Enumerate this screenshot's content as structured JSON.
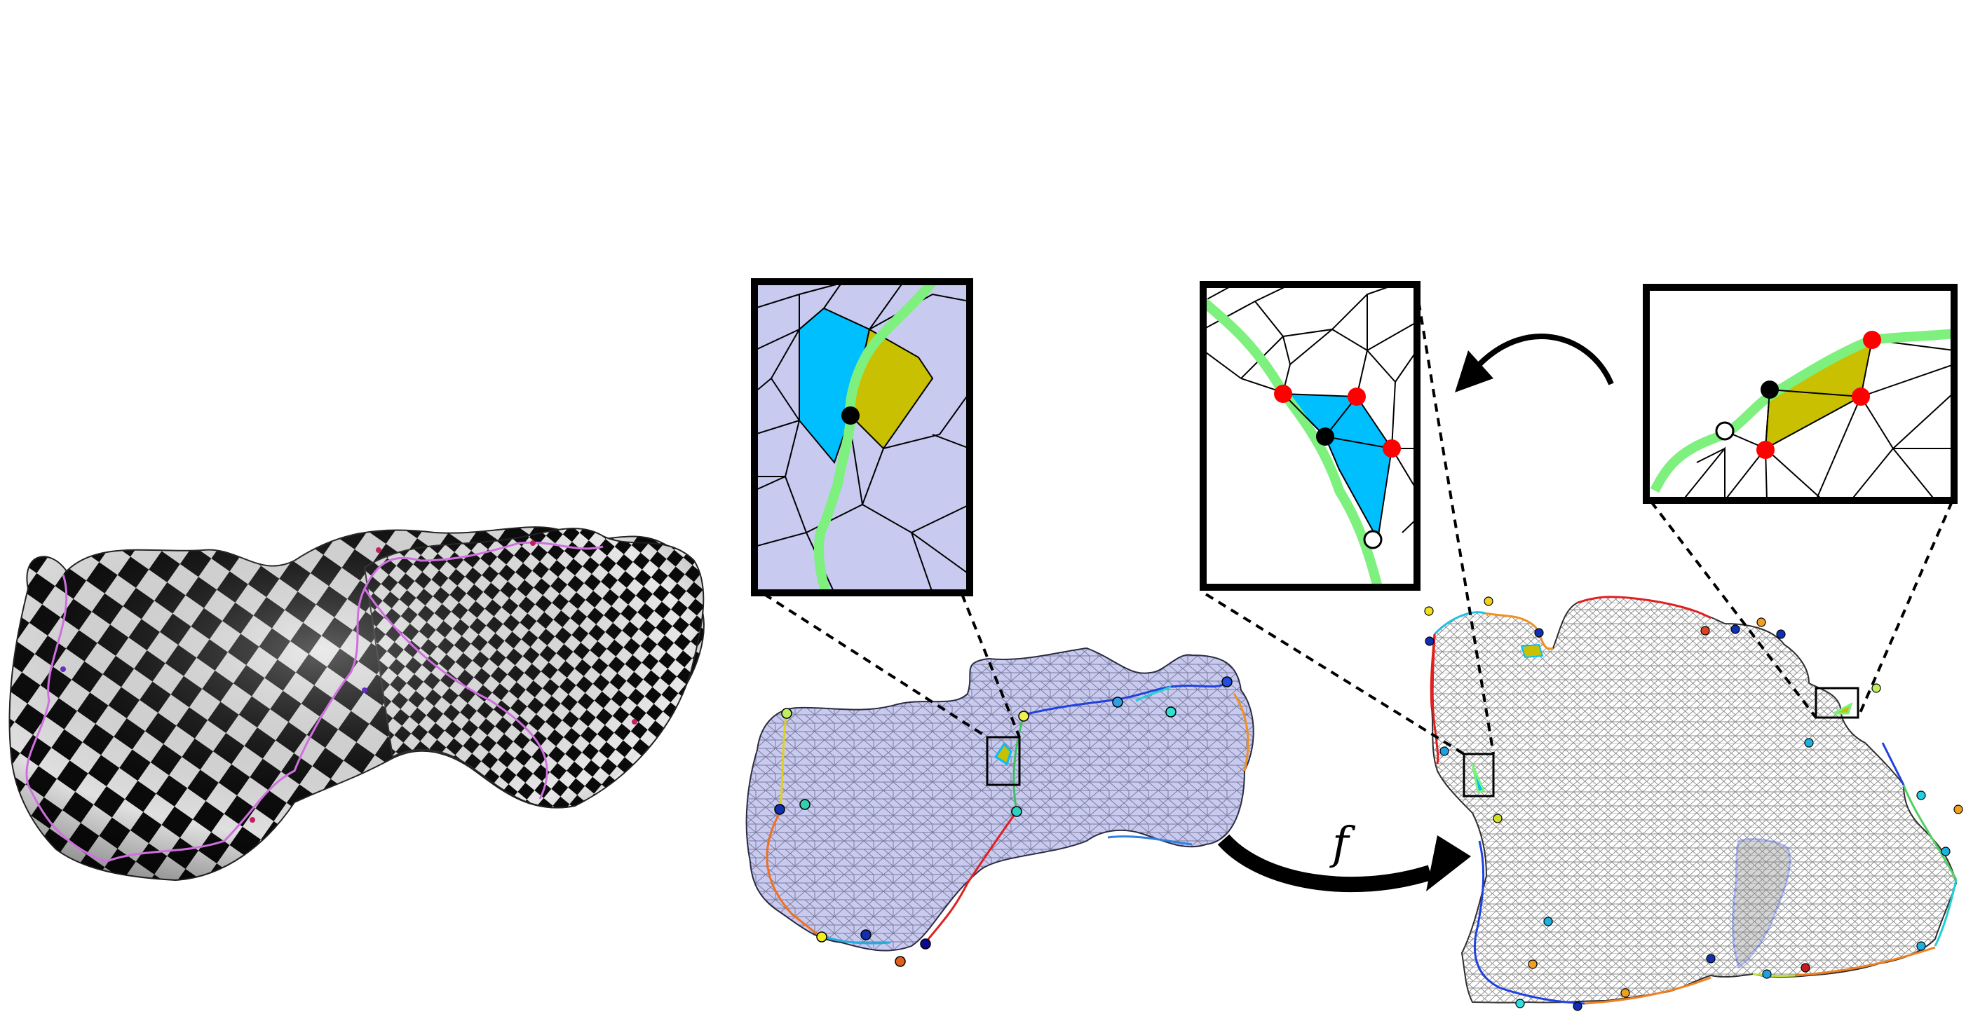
{
  "figure": {
    "map_label": "f",
    "panels": [
      {
        "id": "textured-mesh",
        "description_icon": "checkerboard-surface"
      },
      {
        "id": "cut-mesh",
        "description_icon": "triangulated-surface"
      },
      {
        "id": "parameterization",
        "description_icon": "flattened-mesh"
      }
    ],
    "insets": [
      {
        "id": "inset-3d-vertex"
      },
      {
        "id": "inset-2d-split"
      },
      {
        "id": "inset-2d-original"
      }
    ],
    "colors": {
      "checker_dark": "#0a0a0a",
      "checker_light": "#e8e8e8",
      "mesh_fill": "#c8caf0",
      "seam_green": "#7ef07e",
      "cyan_region": "#00bfff",
      "olive_region": "#c8c000",
      "red_vertex": "#ff0000",
      "black_vertex": "#000000",
      "seam_pink": "#d070e0"
    }
  }
}
